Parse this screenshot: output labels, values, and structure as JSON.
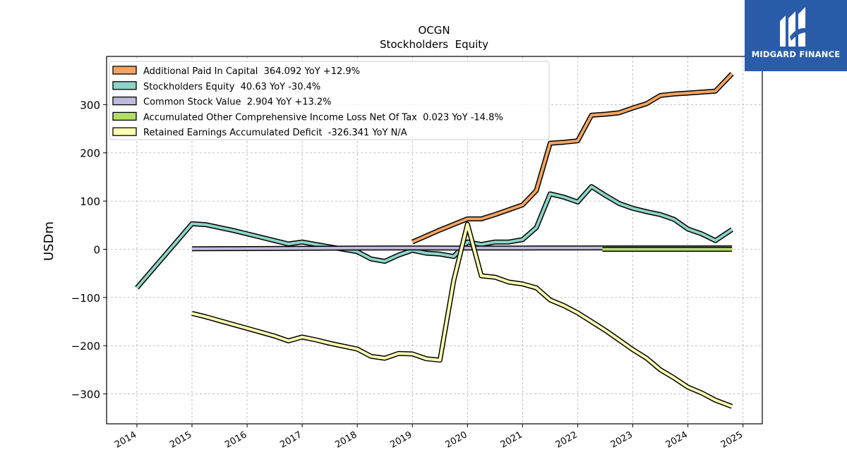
{
  "brand": {
    "name": "MIDGARD FINANCE"
  },
  "chart_data": {
    "type": "line",
    "title": "OCGN",
    "subtitle": "Stockholders  Equity",
    "ylabel": "USDm",
    "xlabel": "",
    "xlim": [
      2013.45,
      2025.35
    ],
    "ylim": [
      -362,
      400
    ],
    "xticks": [
      2014,
      2015,
      2016,
      2017,
      2018,
      2019,
      2020,
      2021,
      2022,
      2023,
      2024,
      2025
    ],
    "xtick_labels": [
      "2014",
      "2015",
      "2016",
      "2017",
      "2018",
      "2019",
      "2020",
      "2021",
      "2022",
      "2023",
      "2024",
      "2025"
    ],
    "yticks": [
      -300,
      -200,
      -100,
      0,
      100,
      200,
      300
    ],
    "ytick_labels": [
      "−300",
      "−200",
      "−100",
      "0",
      "100",
      "200",
      "300"
    ],
    "grid": true,
    "legend_position": "top-left",
    "series": [
      {
        "name": "Additional Paid In Capital  364.092 YoY +12.9%",
        "color": "#f4a460",
        "points": [
          [
            2019.0,
            15
          ],
          [
            2019.5,
            40
          ],
          [
            2020.0,
            63
          ],
          [
            2020.25,
            63
          ],
          [
            2020.5,
            72
          ],
          [
            2020.75,
            82
          ],
          [
            2021.0,
            92
          ],
          [
            2021.25,
            122
          ],
          [
            2021.5,
            220
          ],
          [
            2021.75,
            222
          ],
          [
            2022.0,
            225
          ],
          [
            2022.25,
            278
          ],
          [
            2022.5,
            280
          ],
          [
            2022.75,
            283
          ],
          [
            2023.0,
            293
          ],
          [
            2023.25,
            302
          ],
          [
            2023.5,
            319
          ],
          [
            2023.75,
            322
          ],
          [
            2024.0,
            324
          ],
          [
            2024.25,
            326
          ],
          [
            2024.5,
            328
          ],
          [
            2024.8,
            364
          ]
        ]
      },
      {
        "name": "Stockholders Equity  40.63 YoY -30.4%",
        "color": "#8dd3c7",
        "points": [
          [
            2014.0,
            -80
          ],
          [
            2015.0,
            53
          ],
          [
            2015.25,
            51
          ],
          [
            2015.5,
            45
          ],
          [
            2015.75,
            39
          ],
          [
            2016.0,
            32
          ],
          [
            2016.25,
            25
          ],
          [
            2016.5,
            18
          ],
          [
            2016.75,
            11
          ],
          [
            2017.0,
            15
          ],
          [
            2017.25,
            10
          ],
          [
            2017.5,
            5
          ],
          [
            2017.75,
            0
          ],
          [
            2018.0,
            -5
          ],
          [
            2018.25,
            -20
          ],
          [
            2018.5,
            -25
          ],
          [
            2018.75,
            -12
          ],
          [
            2019.0,
            -2
          ],
          [
            2019.25,
            -8
          ],
          [
            2019.5,
            -10
          ],
          [
            2019.75,
            -15
          ],
          [
            2020.0,
            15
          ],
          [
            2020.25,
            10
          ],
          [
            2020.5,
            15
          ],
          [
            2020.75,
            15
          ],
          [
            2021.0,
            20
          ],
          [
            2021.25,
            45
          ],
          [
            2021.5,
            115
          ],
          [
            2021.75,
            108
          ],
          [
            2022.0,
            98
          ],
          [
            2022.25,
            130
          ],
          [
            2022.5,
            112
          ],
          [
            2022.75,
            95
          ],
          [
            2023.0,
            85
          ],
          [
            2023.25,
            78
          ],
          [
            2023.5,
            72
          ],
          [
            2023.75,
            62
          ],
          [
            2024.0,
            42
          ],
          [
            2024.25,
            32
          ],
          [
            2024.5,
            18
          ],
          [
            2024.8,
            41
          ]
        ]
      },
      {
        "name": "Common Stock Value  2.904 YoY +13.2%",
        "color": "#bebada",
        "points": [
          [
            2015.0,
            1
          ],
          [
            2016.0,
            1.5
          ],
          [
            2017.0,
            2
          ],
          [
            2018.0,
            2.5
          ],
          [
            2019.0,
            2.7
          ],
          [
            2020.0,
            2.5
          ],
          [
            2021.0,
            2.6
          ],
          [
            2022.0,
            2.8
          ],
          [
            2023.0,
            2.9
          ],
          [
            2024.8,
            2.9
          ]
        ]
      },
      {
        "name": "Accumulated Other Comprehensive Income Loss Net Of Tax  0.023 YoY -14.8%",
        "color": "#b3de69",
        "points": [
          [
            2022.45,
            0
          ],
          [
            2023.0,
            0
          ],
          [
            2024.0,
            0
          ],
          [
            2024.8,
            0
          ]
        ]
      },
      {
        "name": "Retained Earnings Accumulated Deficit  -326.341 YoY N/A",
        "color": "#ffffb3",
        "points": [
          [
            2015.0,
            -133
          ],
          [
            2015.25,
            -140
          ],
          [
            2015.5,
            -148
          ],
          [
            2015.75,
            -156
          ],
          [
            2016.0,
            -164
          ],
          [
            2016.25,
            -172
          ],
          [
            2016.5,
            -180
          ],
          [
            2016.75,
            -190
          ],
          [
            2017.0,
            -182
          ],
          [
            2017.25,
            -188
          ],
          [
            2017.5,
            -195
          ],
          [
            2017.75,
            -201
          ],
          [
            2018.0,
            -207
          ],
          [
            2018.25,
            -222
          ],
          [
            2018.5,
            -226
          ],
          [
            2018.75,
            -216
          ],
          [
            2019.0,
            -217
          ],
          [
            2019.25,
            -227
          ],
          [
            2019.5,
            -230
          ],
          [
            2019.75,
            -65
          ],
          [
            2020.0,
            52
          ],
          [
            2020.25,
            -55
          ],
          [
            2020.5,
            -58
          ],
          [
            2020.75,
            -68
          ],
          [
            2021.0,
            -72
          ],
          [
            2021.25,
            -80
          ],
          [
            2021.5,
            -105
          ],
          [
            2021.75,
            -117
          ],
          [
            2022.0,
            -132
          ],
          [
            2022.25,
            -150
          ],
          [
            2022.5,
            -168
          ],
          [
            2022.75,
            -188
          ],
          [
            2023.0,
            -208
          ],
          [
            2023.25,
            -226
          ],
          [
            2023.5,
            -250
          ],
          [
            2023.75,
            -267
          ],
          [
            2024.0,
            -286
          ],
          [
            2024.25,
            -298
          ],
          [
            2024.5,
            -313
          ],
          [
            2024.8,
            -326
          ]
        ]
      }
    ]
  }
}
